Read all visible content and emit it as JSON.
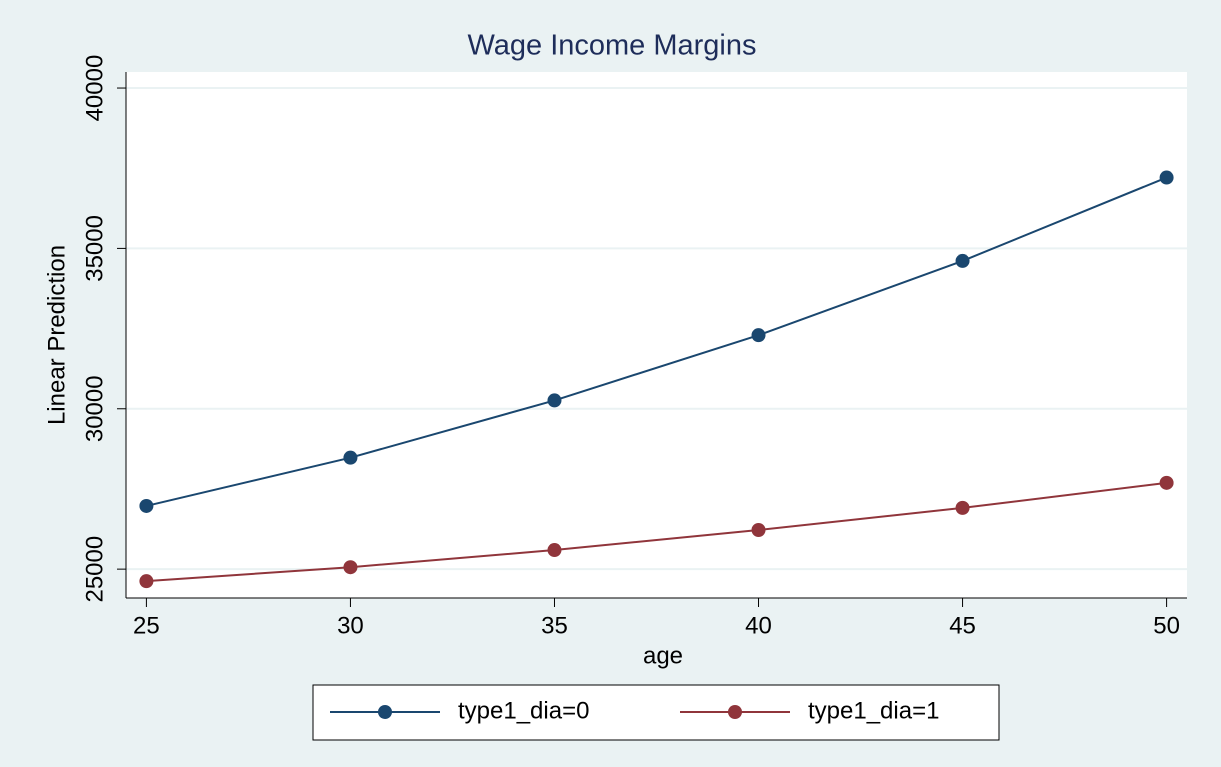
{
  "chart_data": {
    "type": "line",
    "title": "Wage Income Margins",
    "x_label": "age",
    "y_label": "Linear Prediction",
    "x": [
      25,
      30,
      35,
      40,
      45,
      50
    ],
    "series": [
      {
        "name": "type1_dia=0",
        "color": "#1a476f",
        "values": [
          26970,
          28475,
          30260,
          32295,
          34610,
          37210
        ]
      },
      {
        "name": "type1_dia=1",
        "color": "#90353b",
        "values": [
          24625,
          25060,
          25595,
          26220,
          26910,
          27690
        ]
      }
    ],
    "xlim": [
      24.5,
      50.5
    ],
    "xticks": [
      25,
      30,
      35,
      40,
      45,
      50
    ],
    "ylim": [
      24100,
      40500
    ],
    "yticks": [
      25000,
      30000,
      35000,
      40000
    ],
    "grid": true
  }
}
